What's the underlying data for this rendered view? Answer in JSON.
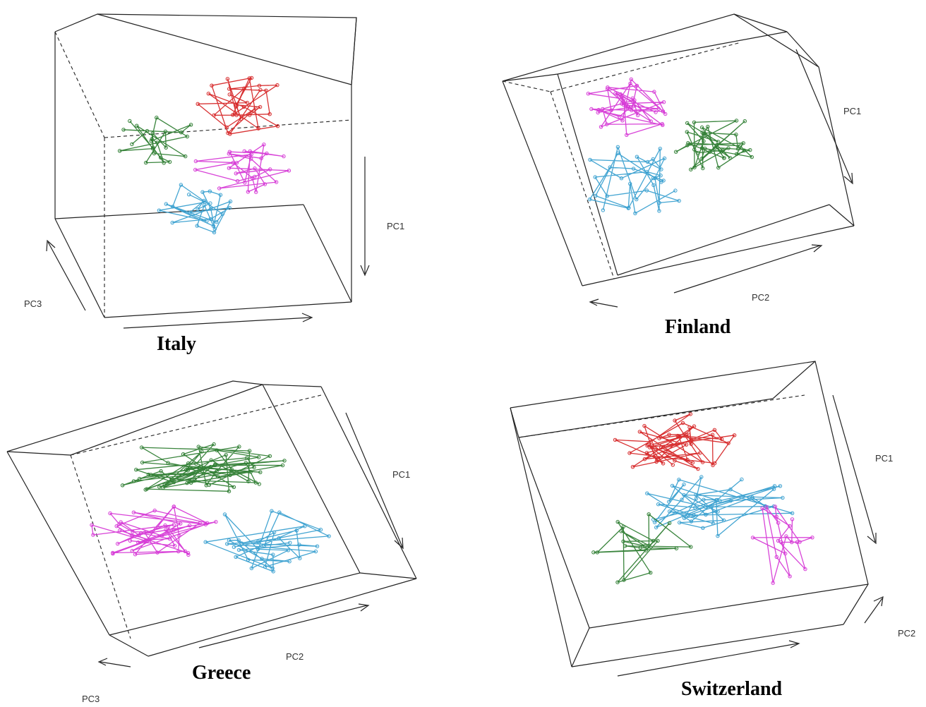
{
  "chart_data": [
    {
      "type": "scatter",
      "subtype": "3d-trajectory",
      "title": "Italy",
      "axis_labels": [
        "PC1",
        "PC3"
      ],
      "series": [
        {
          "color": "#d62728"
        },
        {
          "color": "#2e7d32"
        },
        {
          "color": "#d63ad6"
        },
        {
          "color": "#3aa0d0"
        }
      ]
    },
    {
      "type": "scatter",
      "subtype": "3d-trajectory",
      "title": "Finland",
      "axis_labels": [
        "PC1",
        "PC2"
      ],
      "series": [
        {
          "color": "#d63ad6"
        },
        {
          "color": "#2e7d32"
        },
        {
          "color": "#3aa0d0"
        }
      ]
    },
    {
      "type": "scatter",
      "subtype": "3d-trajectory",
      "title": "Greece",
      "axis_labels": [
        "PC1",
        "PC2",
        "PC3"
      ],
      "series": [
        {
          "color": "#2e7d32"
        },
        {
          "color": "#d63ad6"
        },
        {
          "color": "#3aa0d0"
        }
      ]
    },
    {
      "type": "scatter",
      "subtype": "3d-trajectory",
      "title": "Switzerland",
      "axis_labels": [
        "PC1",
        "PC2"
      ],
      "series": [
        {
          "color": "#d62728"
        },
        {
          "color": "#3aa0d0"
        },
        {
          "color": "#2e7d32"
        },
        {
          "color": "#d63ad6"
        }
      ]
    }
  ]
}
